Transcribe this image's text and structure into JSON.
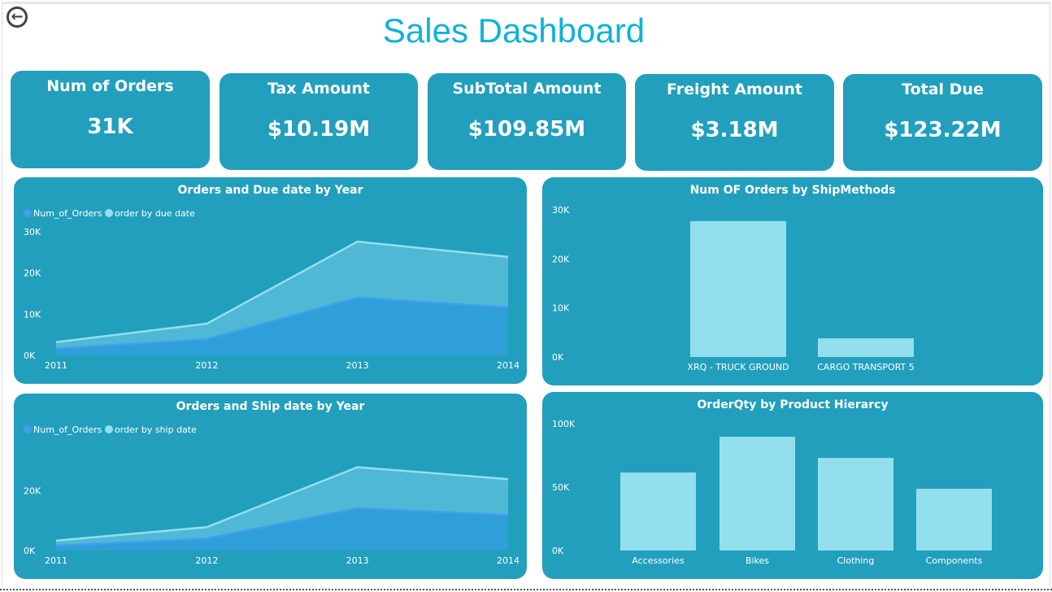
{
  "title": "Sales Dashboard",
  "back_icon": "arrow-left-circle-icon",
  "kpis": [
    {
      "label": "Num of Orders",
      "value": "31K"
    },
    {
      "label": "Tax Amount",
      "value": "$10.19M"
    },
    {
      "label": "SubTotal Amount",
      "value": "$109.85M"
    },
    {
      "label": "Freight Amount",
      "value": "$3.18M"
    },
    {
      "label": "Total Due",
      "value": "$123.22M"
    }
  ],
  "colors": {
    "card": "#229fbd",
    "title": "#10b1d8",
    "series_dark": "#2e9fd8",
    "series_light": "#4fb8d4",
    "bar": "#93dfee"
  },
  "chart_data": [
    {
      "type": "area",
      "stacked": true,
      "title": "Orders and Due date by Year",
      "x": [
        "2011",
        "2012",
        "2013",
        "2014"
      ],
      "yticks": [
        "0K",
        "10K",
        "20K",
        "30K"
      ],
      "ylim": [
        0,
        30000
      ],
      "legend": "top-left",
      "series": [
        {
          "name": "Num_of_Orders",
          "values": [
            1600,
            3900,
            14000,
            11600
          ]
        },
        {
          "name": "order by due date",
          "values": [
            1600,
            3800,
            13600,
            12300
          ]
        }
      ]
    },
    {
      "type": "area",
      "stacked": true,
      "title": "Orders and Ship date by Year",
      "x": [
        "2011",
        "2012",
        "2013",
        "2014"
      ],
      "yticks": [
        "0K",
        "20K"
      ],
      "ylim": [
        0,
        32000
      ],
      "legend": "top-left",
      "series": [
        {
          "name": "Num_of_Orders",
          "values": [
            1600,
            4000,
            14100,
            11800
          ]
        },
        {
          "name": "order by ship date",
          "values": [
            1700,
            3800,
            13700,
            12000
          ]
        }
      ]
    },
    {
      "type": "bar",
      "title": "Num OF Orders by ShipMethods",
      "categories": [
        "XRQ - TRUCK GROUND",
        "CARGO TRANSPORT 5"
      ],
      "values": [
        27700,
        3800
      ],
      "yticks": [
        "0K",
        "10K",
        "20K",
        "30K"
      ],
      "ylim": [
        0,
        30000
      ]
    },
    {
      "type": "bar",
      "title": "OrderQty by Product Hierarcy",
      "categories": [
        "Accessories",
        "Bikes",
        "Clothing",
        "Components"
      ],
      "values": [
        61500,
        89700,
        73000,
        48700
      ],
      "yticks": [
        "0K",
        "50K",
        "100K"
      ],
      "ylim": [
        0,
        100000
      ]
    }
  ]
}
